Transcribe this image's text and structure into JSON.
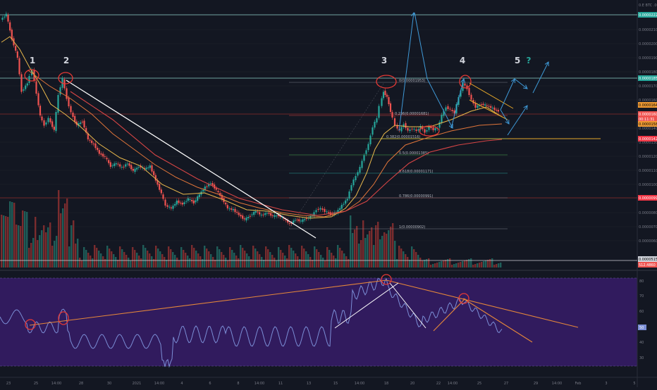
{
  "header": {
    "symbol_label": "0.E BTC .00"
  },
  "price_scale": {
    "ticks": [
      "0.00002200",
      "0.00002100",
      "0.00002000",
      "0.00001900",
      "0.00001800",
      "0.00001700",
      "0.00001600",
      "0.00001500",
      "0.00001400",
      "0.00001300",
      "0.00001200",
      "0.00001100",
      "0.00001000",
      "0.00000900",
      "0.00000800",
      "0.00000700",
      "0.00000600"
    ],
    "badges": [
      {
        "text": "0.00002223",
        "bg": "#26a69a",
        "fg": "#ffffff"
      },
      {
        "text": "0.00001851",
        "bg": "#26a69a",
        "fg": "#ffffff"
      },
      {
        "text": "0.00001646",
        "bg": "#ef9a33",
        "fg": "#000000"
      },
      {
        "text": "0.00001607",
        "bg": "#ef5350",
        "fg": "#ffffff"
      },
      {
        "text": "00:11:31",
        "bg": "#ef5350",
        "fg": "#ffffff"
      },
      {
        "text": "0.00001586",
        "bg": "#ef9a33",
        "fg": "#000000"
      },
      {
        "text": "0.00001421",
        "bg": "#f23645",
        "fg": "#ffffff"
      },
      {
        "text": "0.00000999",
        "bg": "#f23645",
        "fg": "#ffffff"
      },
      {
        "text": "0.0000515",
        "bg": "#d1d4dc",
        "fg": "#000000"
      },
      {
        "text": "512.4860",
        "bg": "#ef5350",
        "fg": "#ffffff"
      }
    ]
  },
  "wave_labels": [
    "1",
    "2",
    "3",
    "4",
    "5",
    "?"
  ],
  "fib_levels": [
    "0(0.00001953)",
    "0.236(0.00001681)",
    "0.382(0.00001516)",
    "0.5(0.00001385)",
    "0.618(0.00001171)",
    "0.786(0.00000991)",
    "1(0.00000902)"
  ],
  "rsi_scale": {
    "ticks": [
      "80",
      "70",
      "60",
      "50",
      "40",
      "30"
    ],
    "current": "50"
  },
  "time_axis": [
    "23",
    "25",
    "14:00",
    "28",
    "30",
    "2021",
    "14:00",
    "4",
    "6",
    "8",
    "14:00",
    "11",
    "13",
    "15",
    "14:00",
    "18",
    "20",
    "22",
    "14:00",
    "25",
    "27",
    "29",
    "14:00",
    "Feb",
    "3",
    "5"
  ],
  "chart_data": {
    "type": "candlestick",
    "symbol": "BTC",
    "price_axis_range": [
      4.5e-06,
      2.45e-05
    ],
    "candles": [],
    "rsi": {
      "range": [
        20,
        85
      ],
      "bands": [
        30,
        80
      ]
    }
  }
}
